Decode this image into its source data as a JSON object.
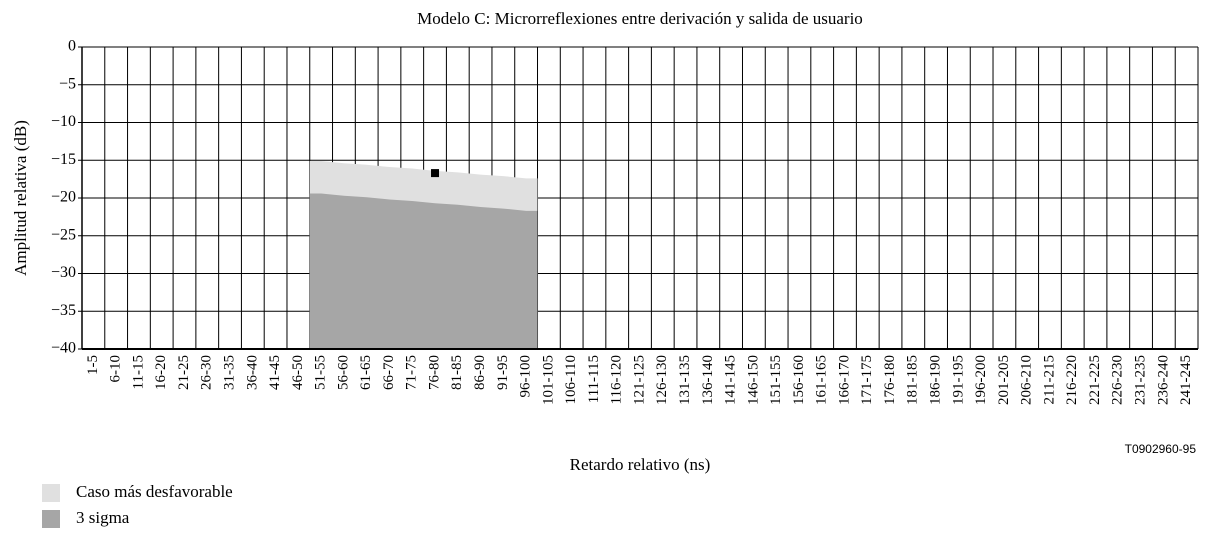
{
  "chart_data": {
    "type": "area",
    "title": "Modelo C: Microrreflexiones entre derivación y salida de usuario",
    "xlabel": "Retardo relativo (ns)",
    "ylabel": "Amplitud relativa (dB)",
    "annotation": "T0902960-95",
    "categories": [
      "1-5",
      "6-10",
      "11-15",
      "16-20",
      "21-25",
      "26-30",
      "31-35",
      "36-40",
      "41-45",
      "46-50",
      "51-55",
      "56-60",
      "61-65",
      "66-70",
      "71-75",
      "76-80",
      "81-85",
      "86-90",
      "91-95",
      "96-100",
      "101-105",
      "106-110",
      "111-115",
      "116-120",
      "121-125",
      "126-130",
      "131-135",
      "136-140",
      "141-145",
      "146-150",
      "151-155",
      "156-160",
      "161-165",
      "166-170",
      "171-175",
      "176-180",
      "181-185",
      "186-190",
      "191-195",
      "196-200",
      "201-205",
      "206-210",
      "211-215",
      "216-220",
      "221-225",
      "226-230",
      "231-235",
      "236-240",
      "241-245"
    ],
    "series": [
      {
        "name": "Caso más desfavorable",
        "color": "#e0e0e0",
        "values": [
          null,
          null,
          null,
          null,
          null,
          null,
          null,
          null,
          null,
          null,
          -15.1,
          -15.4,
          -15.6,
          -15.9,
          -16.1,
          -16.4,
          -16.6,
          -16.9,
          -17.1,
          -17.4,
          null,
          null,
          null,
          null,
          null,
          null,
          null,
          null,
          null,
          null,
          null,
          null,
          null,
          null,
          null,
          null,
          null,
          null,
          null,
          null,
          null,
          null,
          null,
          null,
          null,
          null,
          null,
          null,
          null
        ]
      },
      {
        "name": "3 sigma",
        "color": "#a6a6a6",
        "values": [
          null,
          null,
          null,
          null,
          null,
          null,
          null,
          null,
          null,
          null,
          -19.4,
          -19.7,
          -19.9,
          -20.2,
          -20.4,
          -20.7,
          -20.9,
          -21.2,
          -21.4,
          -21.7,
          null,
          null,
          null,
          null,
          null,
          null,
          null,
          null,
          null,
          null,
          null,
          null,
          null,
          null,
          null,
          null,
          null,
          null,
          null,
          null,
          null,
          null,
          null,
          null,
          null,
          null,
          null,
          null,
          null
        ]
      }
    ],
    "marker": {
      "color": "#000000",
      "values": [
        null,
        null,
        null,
        null,
        null,
        null,
        null,
        null,
        null,
        null,
        null,
        null,
        null,
        null,
        null,
        -16.7,
        null,
        null,
        null,
        null,
        null,
        null,
        null,
        null,
        null,
        null,
        null,
        null,
        null,
        null,
        null,
        null,
        null,
        null,
        null,
        null,
        null,
        null,
        null,
        null,
        null,
        null,
        null,
        null,
        null,
        null,
        null,
        null,
        null
      ]
    },
    "ylim": [
      -40,
      0
    ],
    "yticks": [
      0,
      {
        "value": -5,
        "label": "−5"
      },
      {
        "value": -10,
        "label": "−10"
      },
      {
        "value": -15,
        "label": "−15"
      },
      {
        "value": -20,
        "label": "−20"
      },
      {
        "value": -25,
        "label": "−25"
      },
      {
        "value": -30,
        "label": "−30"
      },
      {
        "value": -35,
        "label": "−35"
      },
      {
        "value": -40,
        "label": "−40"
      }
    ],
    "grid": true
  }
}
